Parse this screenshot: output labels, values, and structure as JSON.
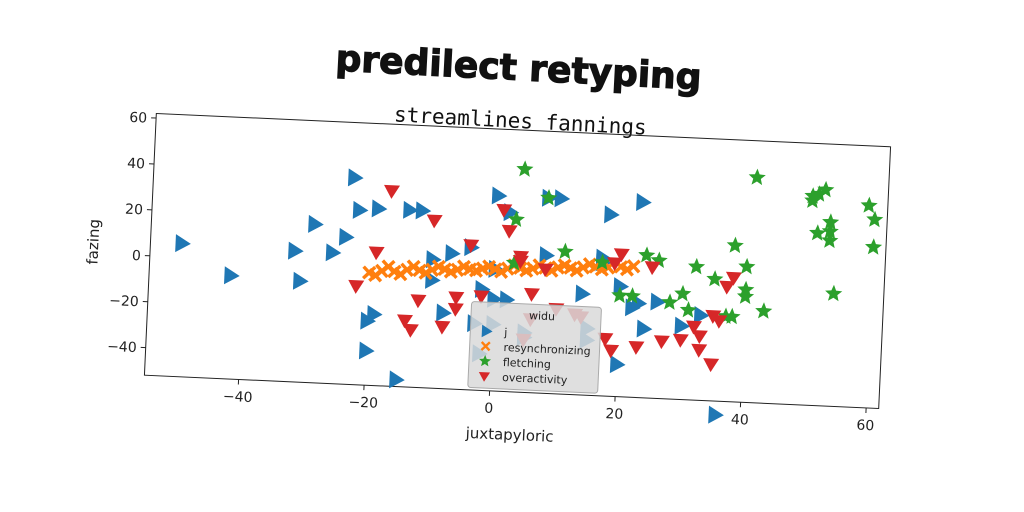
{
  "title": "predilect retyping",
  "chart_data": {
    "type": "scatter",
    "title": "streamlines fannings",
    "xlabel": "juxtapyloric",
    "ylabel": "fazing",
    "xlim": [
      -55,
      62
    ],
    "ylim": [
      -52,
      62
    ],
    "xticks": [
      "-40",
      "-20",
      "0",
      "20",
      "40",
      "60"
    ],
    "yticks": [
      "-40",
      "-20",
      "0",
      "20",
      "40",
      "60"
    ],
    "grid": false,
    "legend": {
      "title": "widu",
      "placement": "lower-center",
      "entries": [
        "j",
        "resynchronizing",
        "fletching",
        "overactivity"
      ]
    },
    "series": [
      {
        "name": "j",
        "marker": "triangle-right",
        "color": "#1f77b4",
        "points": [
          [
            -50,
            6
          ],
          [
            -42,
            -7
          ],
          [
            -32,
            5
          ],
          [
            -31,
            -8
          ],
          [
            -29,
            17
          ],
          [
            -26,
            5
          ],
          [
            -24,
            12
          ],
          [
            -23,
            38
          ],
          [
            -22,
            24
          ],
          [
            -19,
            25
          ],
          [
            -19,
            -21
          ],
          [
            -20,
            -24
          ],
          [
            -20,
            -37
          ],
          [
            -15,
            -49
          ],
          [
            -14,
            25
          ],
          [
            -12,
            25
          ],
          [
            -10,
            4
          ],
          [
            -10,
            -5
          ],
          [
            -8,
            -19
          ],
          [
            -7,
            7
          ],
          [
            -4,
            10
          ],
          [
            -3,
            -23
          ],
          [
            -2,
            -8
          ],
          [
            -2,
            -36
          ],
          [
            0,
            33
          ],
          [
            0,
            1
          ],
          [
            0,
            -12
          ],
          [
            0,
            -23
          ],
          [
            2,
            26
          ],
          [
            2,
            -12
          ],
          [
            5,
            -26
          ],
          [
            5,
            -28
          ],
          [
            8,
            8
          ],
          [
            8,
            33
          ],
          [
            10,
            33
          ],
          [
            14,
            -8
          ],
          [
            15,
            -23
          ],
          [
            15,
            -28
          ],
          [
            17,
            8
          ],
          [
            17,
            6
          ],
          [
            18,
            27
          ],
          [
            20,
            -4
          ],
          [
            20,
            -38
          ],
          [
            22,
            -13
          ],
          [
            23,
            -11
          ],
          [
            23,
            33
          ],
          [
            24,
            -22
          ],
          [
            26,
            -10
          ],
          [
            33,
            -15
          ],
          [
            30,
            -20
          ],
          [
            36,
            -58
          ]
        ]
      },
      {
        "name": "resynchronizing",
        "marker": "x",
        "color": "#ff7f0e",
        "points": [
          [
            -20,
            -3
          ],
          [
            -18,
            -2
          ],
          [
            -16,
            -2
          ],
          [
            -14,
            -1
          ],
          [
            -12,
            -1
          ],
          [
            -10,
            -0.5
          ],
          [
            -8,
            0
          ],
          [
            -6,
            0
          ],
          [
            -4,
            0.5
          ],
          [
            -2,
            1
          ],
          [
            0,
            1
          ],
          [
            2,
            1.5
          ],
          [
            4,
            2
          ],
          [
            6,
            2
          ],
          [
            8,
            2.5
          ],
          [
            10,
            3
          ],
          [
            12,
            3
          ],
          [
            14,
            3.5
          ],
          [
            16,
            4
          ],
          [
            18,
            4
          ],
          [
            20,
            4.5
          ],
          [
            22,
            5
          ],
          [
            -19,
            -4
          ],
          [
            -15,
            -3
          ],
          [
            -11,
            -2
          ],
          [
            -7,
            -1
          ],
          [
            -3,
            0
          ],
          [
            1,
            0
          ],
          [
            5,
            1
          ],
          [
            9,
            1.5
          ],
          [
            13,
            2
          ],
          [
            17,
            3
          ],
          [
            21,
            3.5
          ],
          [
            -17,
            0
          ],
          [
            -13,
            0.5
          ],
          [
            -9,
            1
          ],
          [
            -5,
            1.5
          ],
          [
            -1,
            2
          ],
          [
            3,
            3
          ],
          [
            7,
            3.5
          ],
          [
            11,
            4
          ],
          [
            15,
            5
          ]
        ]
      },
      {
        "name": "fletching",
        "marker": "star",
        "color": "#2ca02c",
        "points": [
          [
            4,
            45
          ],
          [
            3,
            23
          ],
          [
            8,
            33
          ],
          [
            3,
            4
          ],
          [
            11,
            10
          ],
          [
            17,
            6
          ],
          [
            20,
            -8
          ],
          [
            22,
            -8
          ],
          [
            24,
            10
          ],
          [
            26,
            8
          ],
          [
            28,
            -10
          ],
          [
            30,
            -6
          ],
          [
            31,
            -13
          ],
          [
            32,
            6
          ],
          [
            35,
            1
          ],
          [
            37,
            -15
          ],
          [
            38,
            16
          ],
          [
            38,
            -15
          ],
          [
            40,
            7
          ],
          [
            40,
            -3
          ],
          [
            40,
            -6
          ],
          [
            41,
            46
          ],
          [
            43,
            -12
          ],
          [
            50,
            39
          ],
          [
            50,
            37
          ],
          [
            51,
            40
          ],
          [
            52,
            42
          ],
          [
            51,
            23
          ],
          [
            53,
            24
          ],
          [
            53,
            28
          ],
          [
            53,
            20
          ],
          [
            54,
            -3
          ],
          [
            59,
            36
          ],
          [
            60,
            30
          ],
          [
            60,
            18
          ]
        ]
      },
      {
        "name": "overactivity",
        "marker": "triangle-down",
        "color": "#d62728",
        "points": [
          [
            -22,
            -9
          ],
          [
            -19,
            6
          ],
          [
            -17,
            33
          ],
          [
            -14,
            -23
          ],
          [
            -13,
            -27
          ],
          [
            -12,
            -14
          ],
          [
            -10,
            21
          ],
          [
            -8,
            -25
          ],
          [
            -6,
            -17
          ],
          [
            -6,
            -12
          ],
          [
            -4,
            11
          ],
          [
            -2,
            -11
          ],
          [
            1,
            27
          ],
          [
            2,
            18
          ],
          [
            4,
            7
          ],
          [
            4,
            5
          ],
          [
            5,
            -29
          ],
          [
            6,
            -9
          ],
          [
            6,
            -20
          ],
          [
            8,
            2
          ],
          [
            10,
            -15
          ],
          [
            13,
            -17
          ],
          [
            14,
            -18
          ],
          [
            18,
            -27
          ],
          [
            19,
            -32
          ],
          [
            19,
            6
          ],
          [
            20,
            10
          ],
          [
            23,
            -30
          ],
          [
            25,
            5
          ],
          [
            27,
            -27
          ],
          [
            30,
            -26
          ],
          [
            32,
            -20
          ],
          [
            33,
            -24
          ],
          [
            33,
            -30
          ],
          [
            35,
            -15
          ],
          [
            36,
            -17
          ],
          [
            35,
            -36
          ],
          [
            37,
            -2
          ],
          [
            38,
            2
          ]
        ]
      }
    ]
  }
}
